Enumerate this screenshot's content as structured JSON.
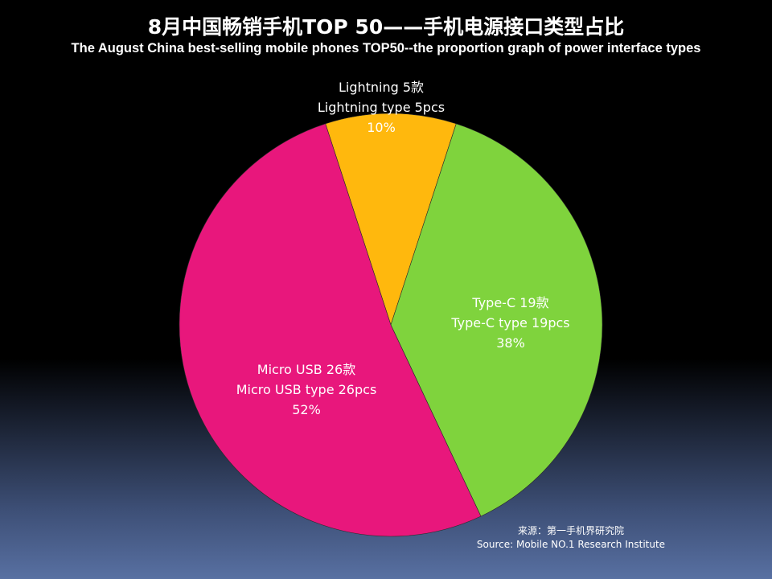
{
  "title": "8月中国畅销手机TOP 50——手机电源接口类型占比",
  "subtitle": "The August China best-selling mobile phones TOP50--the proportion graph of power interface types",
  "source": {
    "line1": "来源：第一手机界研究院",
    "line2": "Source: Mobile NO.1 Research Institute"
  },
  "chart_data": {
    "type": "pie",
    "title": "8月中国畅销手机TOP 50——手机电源接口类型占比",
    "subtitle": "The August China best-selling mobile phones TOP50--the proportion graph of power interface types",
    "slices": [
      {
        "name": "Lightning",
        "value": 5,
        "percent": 10,
        "color": "#ffb80d",
        "labels": [
          "Lightning 5款",
          "Lightning type 5pcs",
          "10%"
        ]
      },
      {
        "name": "Type-C",
        "value": 19,
        "percent": 38,
        "color": "#7fd33d",
        "labels": [
          "Type-C 19款",
          "Type-C type 19pcs",
          "38%"
        ]
      },
      {
        "name": "Micro USB",
        "value": 26,
        "percent": 52,
        "color": "#e8177c",
        "labels": [
          "Micro USB 26款",
          "Micro USB type 26pcs",
          "52%"
        ]
      }
    ],
    "start_angle_deg": -18,
    "direction": "clockwise",
    "legend": "none"
  }
}
